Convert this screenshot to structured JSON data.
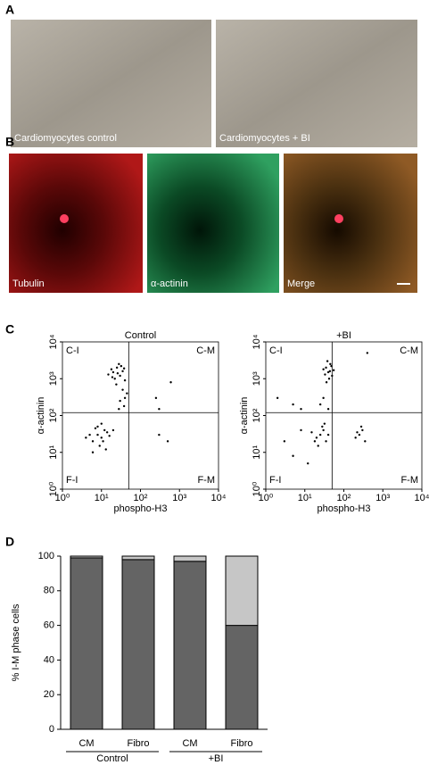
{
  "panels": {
    "A": {
      "label": "A",
      "images": [
        "Cardiomyocytes control",
        "Cardiomyocytes + BI"
      ]
    },
    "B": {
      "label": "B",
      "images": [
        "Tubulin",
        "α-actinin",
        "Merge"
      ]
    },
    "C": {
      "label": "C"
    },
    "D": {
      "label": "D"
    }
  },
  "chart_data": [
    {
      "type": "scatter",
      "title": "Control",
      "xlabel": "phospho-H3",
      "ylabel": "α-actinin",
      "log": true,
      "xlim": [
        1,
        10000
      ],
      "ylim": [
        1,
        10000
      ],
      "xticks": [
        {
          "value": 1,
          "label": "10⁰"
        },
        {
          "value": 10,
          "label": "10¹"
        },
        {
          "value": 100,
          "label": "10²"
        },
        {
          "value": 1000,
          "label": "10³"
        },
        {
          "value": 10000,
          "label": "10⁴"
        }
      ],
      "yticks": [
        {
          "value": 1,
          "label": "10⁰"
        },
        {
          "value": 10,
          "label": "10¹"
        },
        {
          "value": 100,
          "label": "10²"
        },
        {
          "value": 1000,
          "label": "10³"
        },
        {
          "value": 10000,
          "label": "10⁴"
        }
      ],
      "gate": {
        "x": 50,
        "y": 120
      },
      "quadrant_labels": [
        "C-I",
        "C-M",
        "F-I",
        "F-M"
      ],
      "color": "#000000",
      "x": [
        20,
        25,
        30,
        18,
        22,
        35,
        28,
        15,
        40,
        24,
        32,
        19,
        26,
        38,
        35,
        40,
        30,
        45,
        38,
        28,
        8,
        10,
        12,
        6,
        9,
        14,
        7,
        11,
        5,
        13,
        8,
        10,
        16,
        6,
        20,
        4,
        250,
        600,
        300,
        300,
        500
      ],
      "y": [
        1500,
        2000,
        1200,
        1800,
        1000,
        1600,
        2500,
        1300,
        900,
        700,
        2200,
        1100,
        1400,
        1900,
        500,
        300,
        250,
        400,
        180,
        150,
        30,
        25,
        40,
        20,
        15,
        35,
        45,
        20,
        30,
        12,
        50,
        60,
        28,
        10,
        40,
        25,
        300,
        800,
        150,
        30,
        20
      ]
    },
    {
      "type": "scatter",
      "title": "+BI",
      "xlabel": "phospho-H3",
      "ylabel": "α-actinin",
      "log": true,
      "xlim": [
        1,
        10000
      ],
      "ylim": [
        1,
        10000
      ],
      "xticks": [
        {
          "value": 1,
          "label": "10⁰"
        },
        {
          "value": 10,
          "label": "10¹"
        },
        {
          "value": 100,
          "label": "10²"
        },
        {
          "value": 1000,
          "label": "10³"
        },
        {
          "value": 10000,
          "label": "10⁴"
        }
      ],
      "yticks": [
        {
          "value": 1,
          "label": "10⁰"
        },
        {
          "value": 10,
          "label": "10¹"
        },
        {
          "value": 100,
          "label": "10²"
        },
        {
          "value": 1000,
          "label": "10³"
        },
        {
          "value": 10000,
          "label": "10⁴"
        }
      ],
      "gate": {
        "x": 50,
        "y": 120
      },
      "quadrant_labels": [
        "C-I",
        "C-M",
        "F-I",
        "F-M"
      ],
      "color": "#000000",
      "x": [
        35,
        40,
        45,
        30,
        50,
        38,
        42,
        55,
        33,
        48,
        36,
        44,
        30,
        25,
        40,
        25,
        30,
        20,
        35,
        28,
        22,
        15,
        40,
        32,
        18,
        5,
        8,
        3,
        12,
        250,
        300,
        200,
        350,
        280,
        220,
        5,
        8,
        2,
        400
      ],
      "y": [
        2000,
        1500,
        2500,
        1800,
        1200,
        3000,
        1000,
        1700,
        1300,
        2200,
        800,
        1600,
        300,
        200,
        150,
        30,
        40,
        25,
        20,
        50,
        15,
        35,
        30,
        60,
        20,
        8,
        40,
        20,
        5,
        30,
        40,
        25,
        20,
        50,
        35,
        200,
        150,
        300,
        5000
      ]
    },
    {
      "type": "stacked_bar",
      "ylabel": "% I-M phase cells",
      "categories": [
        "CM",
        "Fibro",
        "CM",
        "Fibro"
      ],
      "groups": [
        "Control",
        "+BI"
      ],
      "series": [
        {
          "color": "#646464",
          "values": [
            99,
            98,
            97,
            60
          ]
        },
        {
          "color": "#c6c6c6",
          "values": [
            1,
            2,
            3,
            40
          ]
        }
      ],
      "ylim": [
        0,
        100
      ],
      "yticks": [
        0,
        20,
        40,
        60,
        80,
        100
      ]
    }
  ]
}
